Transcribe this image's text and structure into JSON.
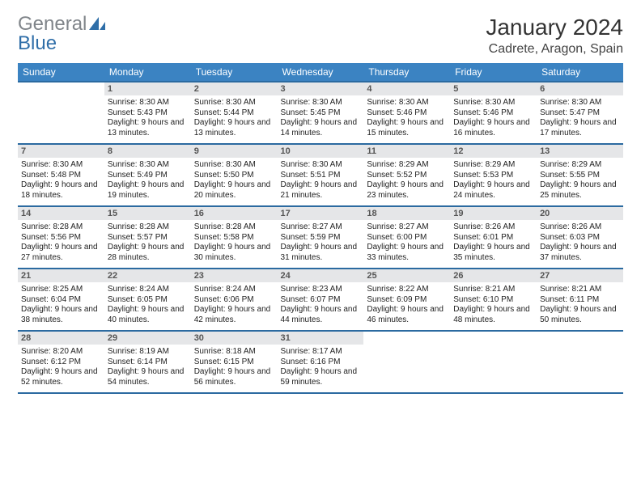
{
  "logo": {
    "part1": "General",
    "part2": "Blue"
  },
  "title": "January 2024",
  "location": "Cadrete, Aragon, Spain",
  "colors": {
    "header_bg": "#3b83c2",
    "header_border": "#2b6aa0",
    "daynum_bg": "#e5e6e8",
    "logo_gray": "#80858a",
    "logo_blue": "#2f6ea8",
    "text": "#222222",
    "page_bg": "#ffffff"
  },
  "week_headers": [
    "Sunday",
    "Monday",
    "Tuesday",
    "Wednesday",
    "Thursday",
    "Friday",
    "Saturday"
  ],
  "days": [
    {
      "n": "",
      "sr": "",
      "ss": "",
      "dl": ""
    },
    {
      "n": "1",
      "sr": "Sunrise: 8:30 AM",
      "ss": "Sunset: 5:43 PM",
      "dl": "Daylight: 9 hours and 13 minutes."
    },
    {
      "n": "2",
      "sr": "Sunrise: 8:30 AM",
      "ss": "Sunset: 5:44 PM",
      "dl": "Daylight: 9 hours and 13 minutes."
    },
    {
      "n": "3",
      "sr": "Sunrise: 8:30 AM",
      "ss": "Sunset: 5:45 PM",
      "dl": "Daylight: 9 hours and 14 minutes."
    },
    {
      "n": "4",
      "sr": "Sunrise: 8:30 AM",
      "ss": "Sunset: 5:46 PM",
      "dl": "Daylight: 9 hours and 15 minutes."
    },
    {
      "n": "5",
      "sr": "Sunrise: 8:30 AM",
      "ss": "Sunset: 5:46 PM",
      "dl": "Daylight: 9 hours and 16 minutes."
    },
    {
      "n": "6",
      "sr": "Sunrise: 8:30 AM",
      "ss": "Sunset: 5:47 PM",
      "dl": "Daylight: 9 hours and 17 minutes."
    },
    {
      "n": "7",
      "sr": "Sunrise: 8:30 AM",
      "ss": "Sunset: 5:48 PM",
      "dl": "Daylight: 9 hours and 18 minutes."
    },
    {
      "n": "8",
      "sr": "Sunrise: 8:30 AM",
      "ss": "Sunset: 5:49 PM",
      "dl": "Daylight: 9 hours and 19 minutes."
    },
    {
      "n": "9",
      "sr": "Sunrise: 8:30 AM",
      "ss": "Sunset: 5:50 PM",
      "dl": "Daylight: 9 hours and 20 minutes."
    },
    {
      "n": "10",
      "sr": "Sunrise: 8:30 AM",
      "ss": "Sunset: 5:51 PM",
      "dl": "Daylight: 9 hours and 21 minutes."
    },
    {
      "n": "11",
      "sr": "Sunrise: 8:29 AM",
      "ss": "Sunset: 5:52 PM",
      "dl": "Daylight: 9 hours and 23 minutes."
    },
    {
      "n": "12",
      "sr": "Sunrise: 8:29 AM",
      "ss": "Sunset: 5:53 PM",
      "dl": "Daylight: 9 hours and 24 minutes."
    },
    {
      "n": "13",
      "sr": "Sunrise: 8:29 AM",
      "ss": "Sunset: 5:55 PM",
      "dl": "Daylight: 9 hours and 25 minutes."
    },
    {
      "n": "14",
      "sr": "Sunrise: 8:28 AM",
      "ss": "Sunset: 5:56 PM",
      "dl": "Daylight: 9 hours and 27 minutes."
    },
    {
      "n": "15",
      "sr": "Sunrise: 8:28 AM",
      "ss": "Sunset: 5:57 PM",
      "dl": "Daylight: 9 hours and 28 minutes."
    },
    {
      "n": "16",
      "sr": "Sunrise: 8:28 AM",
      "ss": "Sunset: 5:58 PM",
      "dl": "Daylight: 9 hours and 30 minutes."
    },
    {
      "n": "17",
      "sr": "Sunrise: 8:27 AM",
      "ss": "Sunset: 5:59 PM",
      "dl": "Daylight: 9 hours and 31 minutes."
    },
    {
      "n": "18",
      "sr": "Sunrise: 8:27 AM",
      "ss": "Sunset: 6:00 PM",
      "dl": "Daylight: 9 hours and 33 minutes."
    },
    {
      "n": "19",
      "sr": "Sunrise: 8:26 AM",
      "ss": "Sunset: 6:01 PM",
      "dl": "Daylight: 9 hours and 35 minutes."
    },
    {
      "n": "20",
      "sr": "Sunrise: 8:26 AM",
      "ss": "Sunset: 6:03 PM",
      "dl": "Daylight: 9 hours and 37 minutes."
    },
    {
      "n": "21",
      "sr": "Sunrise: 8:25 AM",
      "ss": "Sunset: 6:04 PM",
      "dl": "Daylight: 9 hours and 38 minutes."
    },
    {
      "n": "22",
      "sr": "Sunrise: 8:24 AM",
      "ss": "Sunset: 6:05 PM",
      "dl": "Daylight: 9 hours and 40 minutes."
    },
    {
      "n": "23",
      "sr": "Sunrise: 8:24 AM",
      "ss": "Sunset: 6:06 PM",
      "dl": "Daylight: 9 hours and 42 minutes."
    },
    {
      "n": "24",
      "sr": "Sunrise: 8:23 AM",
      "ss": "Sunset: 6:07 PM",
      "dl": "Daylight: 9 hours and 44 minutes."
    },
    {
      "n": "25",
      "sr": "Sunrise: 8:22 AM",
      "ss": "Sunset: 6:09 PM",
      "dl": "Daylight: 9 hours and 46 minutes."
    },
    {
      "n": "26",
      "sr": "Sunrise: 8:21 AM",
      "ss": "Sunset: 6:10 PM",
      "dl": "Daylight: 9 hours and 48 minutes."
    },
    {
      "n": "27",
      "sr": "Sunrise: 8:21 AM",
      "ss": "Sunset: 6:11 PM",
      "dl": "Daylight: 9 hours and 50 minutes."
    },
    {
      "n": "28",
      "sr": "Sunrise: 8:20 AM",
      "ss": "Sunset: 6:12 PM",
      "dl": "Daylight: 9 hours and 52 minutes."
    },
    {
      "n": "29",
      "sr": "Sunrise: 8:19 AM",
      "ss": "Sunset: 6:14 PM",
      "dl": "Daylight: 9 hours and 54 minutes."
    },
    {
      "n": "30",
      "sr": "Sunrise: 8:18 AM",
      "ss": "Sunset: 6:15 PM",
      "dl": "Daylight: 9 hours and 56 minutes."
    },
    {
      "n": "31",
      "sr": "Sunrise: 8:17 AM",
      "ss": "Sunset: 6:16 PM",
      "dl": "Daylight: 9 hours and 59 minutes."
    },
    {
      "n": "",
      "sr": "",
      "ss": "",
      "dl": ""
    },
    {
      "n": "",
      "sr": "",
      "ss": "",
      "dl": ""
    },
    {
      "n": "",
      "sr": "",
      "ss": "",
      "dl": ""
    }
  ]
}
